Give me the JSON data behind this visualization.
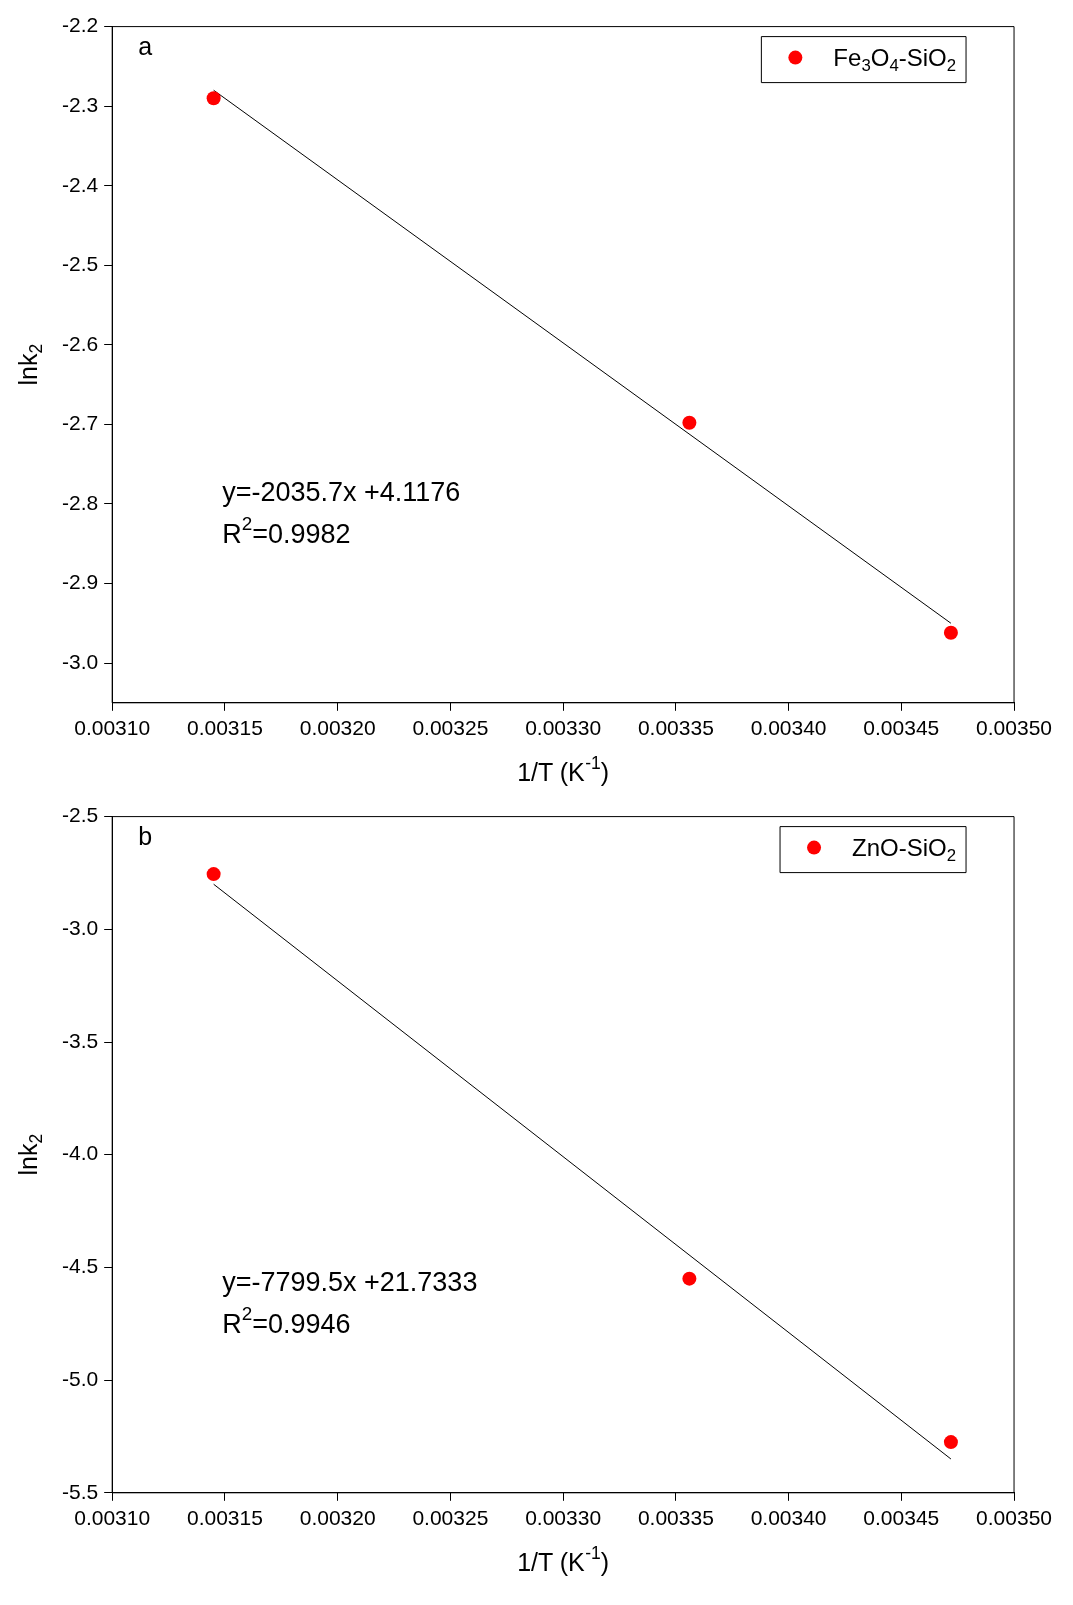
{
  "chart_data": [
    {
      "type": "scatter",
      "xlabel": "1/T (K$^{-1}$)",
      "ylabel": "lnk$_{2}$",
      "annotations": [
        "a",
        "y=-2035.7x +4.1176",
        "R$^{2}$=0.9982"
      ],
      "xlim": [
        0.0031,
        0.0035
      ],
      "xticks": [
        {
          "value": 0.0031,
          "label": "0.00310"
        },
        {
          "value": 0.00315,
          "label": "0.00315"
        },
        {
          "value": 0.0032,
          "label": "0.00320"
        },
        {
          "value": 0.00325,
          "label": "0.00325"
        },
        {
          "value": 0.0033,
          "label": "0.00330"
        },
        {
          "value": 0.00335,
          "label": "0.00335"
        },
        {
          "value": 0.0034,
          "label": "0.00340"
        },
        {
          "value": 0.00345,
          "label": "0.00345"
        },
        {
          "value": 0.0035,
          "label": "0.00350"
        }
      ],
      "ylim": [
        -3.05,
        -2.2
      ],
      "yticks": [
        -2.2,
        -2.3,
        -2.4,
        -2.5,
        -2.6,
        -2.7,
        -2.8,
        -2.9,
        {
          "value": -3.0,
          "label": "-3.0"
        }
      ],
      "grid": false,
      "legend": "top right",
      "marker": "circle",
      "series": [
        {
          "name": "Fe$_{3}$O$_{4}$-SiO$_{2}$",
          "type": "scatter",
          "color": "#ff0000",
          "x": [
            0.003145,
            0.003356,
            0.003472
          ],
          "values": [
            -2.29,
            -2.698,
            -2.962
          ]
        },
        {
          "type": "line",
          "color": "#000000",
          "marker": "none",
          "x": [
            0.003145,
            0.003472
          ],
          "values": [
            -2.28,
            -2.95
          ]
        }
      ]
    },
    {
      "type": "scatter",
      "xlabel": "1/T (K$^{-1}$)",
      "ylabel": "lnk$_{2}$",
      "annotations": [
        "b",
        "y=-7799.5x +21.7333",
        "R$^{2}$=0.9946"
      ],
      "xlim": [
        0.0031,
        0.0035
      ],
      "xticks": [
        {
          "value": 0.0031,
          "label": "0.00310"
        },
        {
          "value": 0.00315,
          "label": "0.00315"
        },
        {
          "value": 0.0032,
          "label": "0.00320"
        },
        {
          "value": 0.00325,
          "label": "0.00325"
        },
        {
          "value": 0.0033,
          "label": "0.00330"
        },
        {
          "value": 0.00335,
          "label": "0.00335"
        },
        {
          "value": 0.0034,
          "label": "0.00340"
        },
        {
          "value": 0.00345,
          "label": "0.00345"
        },
        {
          "value": 0.0035,
          "label": "0.00350"
        }
      ],
      "ylim": [
        -5.5,
        -2.5
      ],
      "yticks": [
        -2.5,
        {
          "value": -3.0,
          "label": "-3.0"
        },
        -3.5,
        {
          "value": -4.0,
          "label": "-4.0"
        },
        -4.5,
        {
          "value": -5.0,
          "label": "-5.0"
        },
        -5.5
      ],
      "grid": false,
      "legend": "top right",
      "marker": "circle",
      "series": [
        {
          "name": "ZnO-SiO$_{2}$",
          "type": "scatter",
          "color": "#ff0000",
          "x": [
            0.003145,
            0.003356,
            0.003472
          ],
          "values": [
            -2.755,
            -4.55,
            -5.275
          ]
        },
        {
          "type": "line",
          "color": "#000000",
          "marker": "none",
          "x": [
            0.003145,
            0.003472
          ],
          "values": [
            -2.8,
            -5.35
          ]
        }
      ]
    }
  ]
}
